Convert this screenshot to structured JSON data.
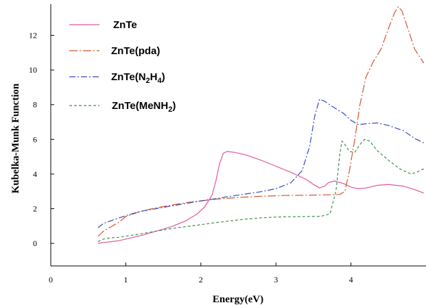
{
  "chart_data": {
    "type": "line",
    "title": "",
    "xlabel": "Energy(eV)",
    "ylabel": "Kubelka-Munk Function",
    "xlim": [
      0,
      5
    ],
    "ylim": [
      -1.3,
      13.8
    ],
    "x_ticks": [
      "0",
      "1",
      "2",
      "3",
      "4"
    ],
    "y_ticks": [
      "0",
      "2",
      "4",
      "6",
      "8",
      "10",
      "12"
    ],
    "legend_position": "top-left",
    "grid": false,
    "series": [
      {
        "name": "ZnTe",
        "legend_label": [
          "ZnTe"
        ],
        "color": "#e0559a",
        "dash": "solid",
        "points": [
          [
            0.63,
            0.0
          ],
          [
            0.7,
            0.05
          ],
          [
            0.8,
            0.1
          ],
          [
            0.9,
            0.15
          ],
          [
            1.0,
            0.25
          ],
          [
            1.2,
            0.45
          ],
          [
            1.4,
            0.7
          ],
          [
            1.6,
            0.95
          ],
          [
            1.8,
            1.3
          ],
          [
            1.95,
            1.7
          ],
          [
            2.05,
            2.1
          ],
          [
            2.15,
            2.8
          ],
          [
            2.2,
            3.6
          ],
          [
            2.25,
            4.6
          ],
          [
            2.3,
            5.2
          ],
          [
            2.35,
            5.3
          ],
          [
            2.45,
            5.25
          ],
          [
            2.6,
            5.1
          ],
          [
            2.8,
            4.8
          ],
          [
            3.0,
            4.45
          ],
          [
            3.2,
            4.1
          ],
          [
            3.4,
            3.7
          ],
          [
            3.5,
            3.4
          ],
          [
            3.58,
            3.2
          ],
          [
            3.65,
            3.3
          ],
          [
            3.7,
            3.5
          ],
          [
            3.78,
            3.6
          ],
          [
            3.9,
            3.45
          ],
          [
            4.0,
            3.25
          ],
          [
            4.1,
            3.15
          ],
          [
            4.2,
            3.2
          ],
          [
            4.35,
            3.35
          ],
          [
            4.5,
            3.4
          ],
          [
            4.7,
            3.3
          ],
          [
            4.85,
            3.1
          ],
          [
            4.97,
            2.9
          ]
        ]
      },
      {
        "name": "ZnTe(pda)",
        "legend_label": [
          "ZnTe(pda)"
        ],
        "color": "#d5522a",
        "dash": "12,3,2,3",
        "points": [
          [
            0.63,
            0.4
          ],
          [
            0.7,
            0.7
          ],
          [
            0.8,
            0.95
          ],
          [
            0.9,
            1.2
          ],
          [
            1.0,
            1.55
          ],
          [
            1.2,
            1.85
          ],
          [
            1.4,
            2.05
          ],
          [
            1.6,
            2.2
          ],
          [
            1.8,
            2.35
          ],
          [
            2.0,
            2.45
          ],
          [
            2.2,
            2.55
          ],
          [
            2.5,
            2.65
          ],
          [
            2.8,
            2.72
          ],
          [
            3.1,
            2.76
          ],
          [
            3.4,
            2.78
          ],
          [
            3.7,
            2.8
          ],
          [
            3.85,
            2.82
          ],
          [
            3.92,
            3.0
          ],
          [
            3.98,
            4.2
          ],
          [
            4.05,
            6.0
          ],
          [
            4.12,
            8.0
          ],
          [
            4.2,
            9.6
          ],
          [
            4.3,
            10.5
          ],
          [
            4.4,
            11.2
          ],
          [
            4.5,
            12.4
          ],
          [
            4.58,
            13.3
          ],
          [
            4.63,
            13.65
          ],
          [
            4.68,
            13.4
          ],
          [
            4.75,
            12.5
          ],
          [
            4.85,
            11.2
          ],
          [
            4.97,
            10.4
          ]
        ]
      },
      {
        "name": "ZnTe(N2H4)",
        "legend_label": [
          "ZnTe(N",
          "2",
          "H",
          "4",
          ")"
        ],
        "color": "#3548b8",
        "dash": "9,3,2,3",
        "points": [
          [
            0.63,
            0.9
          ],
          [
            0.7,
            1.15
          ],
          [
            0.8,
            1.3
          ],
          [
            0.9,
            1.45
          ],
          [
            1.0,
            1.6
          ],
          [
            1.2,
            1.85
          ],
          [
            1.4,
            2.0
          ],
          [
            1.6,
            2.15
          ],
          [
            1.8,
            2.3
          ],
          [
            2.0,
            2.45
          ],
          [
            2.2,
            2.58
          ],
          [
            2.4,
            2.72
          ],
          [
            2.6,
            2.85
          ],
          [
            2.8,
            2.98
          ],
          [
            3.0,
            3.15
          ],
          [
            3.2,
            3.5
          ],
          [
            3.35,
            4.2
          ],
          [
            3.45,
            5.6
          ],
          [
            3.52,
            7.4
          ],
          [
            3.58,
            8.3
          ],
          [
            3.65,
            8.2
          ],
          [
            3.75,
            7.9
          ],
          [
            3.9,
            7.5
          ],
          [
            4.0,
            7.1
          ],
          [
            4.1,
            6.85
          ],
          [
            4.2,
            6.9
          ],
          [
            4.35,
            6.95
          ],
          [
            4.5,
            6.8
          ],
          [
            4.7,
            6.5
          ],
          [
            4.85,
            6.05
          ],
          [
            4.97,
            5.8
          ]
        ]
      },
      {
        "name": "ZnTe(MeNH2)",
        "legend_label": [
          "ZnTe(MeNH",
          "2",
          ")"
        ],
        "color": "#3c8f4a",
        "dash": "4,3",
        "points": [
          [
            0.63,
            0.1
          ],
          [
            0.7,
            0.25
          ],
          [
            0.8,
            0.32
          ],
          [
            0.9,
            0.35
          ],
          [
            1.0,
            0.42
          ],
          [
            1.2,
            0.55
          ],
          [
            1.4,
            0.7
          ],
          [
            1.6,
            0.85
          ],
          [
            1.8,
            0.97
          ],
          [
            2.0,
            1.08
          ],
          [
            2.2,
            1.2
          ],
          [
            2.4,
            1.3
          ],
          [
            2.6,
            1.4
          ],
          [
            2.8,
            1.47
          ],
          [
            3.0,
            1.52
          ],
          [
            3.2,
            1.54
          ],
          [
            3.4,
            1.55
          ],
          [
            3.6,
            1.56
          ],
          [
            3.72,
            1.7
          ],
          [
            3.8,
            3.0
          ],
          [
            3.85,
            5.1
          ],
          [
            3.88,
            5.9
          ],
          [
            3.92,
            5.7
          ],
          [
            3.98,
            5.3
          ],
          [
            4.05,
            5.25
          ],
          [
            4.12,
            5.7
          ],
          [
            4.18,
            6.0
          ],
          [
            4.25,
            5.9
          ],
          [
            4.35,
            5.35
          ],
          [
            4.5,
            4.8
          ],
          [
            4.65,
            4.3
          ],
          [
            4.8,
            4.0
          ],
          [
            4.9,
            4.15
          ],
          [
            4.97,
            4.3
          ]
        ]
      }
    ]
  }
}
